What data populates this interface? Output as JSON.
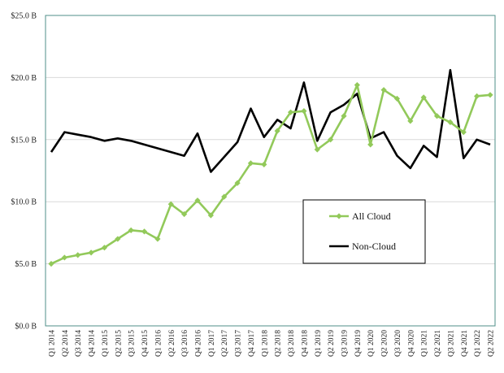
{
  "chart_data": {
    "type": "line",
    "title": "",
    "xlabel": "",
    "ylabel": "",
    "ylim": [
      0,
      25
    ],
    "y_ticks": [
      "$0.0 B",
      "$5.0 B",
      "$10.0 B",
      "$15.0 B",
      "$20.0 B",
      "$25.0 B"
    ],
    "grid": "horizontal",
    "legend_position": "center-right",
    "categories": [
      "Q1 2014",
      "Q2 2014",
      "Q3 2014",
      "Q4 2014",
      "Q1 2015",
      "Q2 2015",
      "Q3 2015",
      "Q4 2015",
      "Q1 2016",
      "Q2 2016",
      "Q3 2016",
      "Q4 2016",
      "Q1 2017",
      "Q2 2017",
      "Q3 2017",
      "Q4 2017",
      "Q1 2018",
      "Q2 2018",
      "Q3 2018",
      "Q4 2018",
      "Q1 2019",
      "Q2 2019",
      "Q3 2019",
      "Q4 2019",
      "Q1 2020",
      "Q2 2020",
      "Q3 2020",
      "Q4 2020",
      "Q1 2021",
      "Q2 2021",
      "Q3 2021",
      "Q4 2021",
      "Q1 2022",
      "Q2 2022"
    ],
    "series": [
      {
        "name": "All Cloud",
        "color": "#92c95a",
        "marker": "diamond",
        "values": [
          5.0,
          5.5,
          5.7,
          5.9,
          6.3,
          7.0,
          7.7,
          7.6,
          7.0,
          9.8,
          9.0,
          10.1,
          8.9,
          10.4,
          11.5,
          13.1,
          13.0,
          15.7,
          17.2,
          17.3,
          14.2,
          15.0,
          16.9,
          19.4,
          14.6,
          19.0,
          18.3,
          16.5,
          18.4,
          16.9,
          16.4,
          15.6,
          18.5,
          18.6
        ]
      },
      {
        "name": "Non-Cloud",
        "color": "#000000",
        "marker": "none",
        "values": [
          14.0,
          15.6,
          15.4,
          15.2,
          14.9,
          15.1,
          14.9,
          14.6,
          14.3,
          14.0,
          13.7,
          15.5,
          12.4,
          13.6,
          14.8,
          17.5,
          15.2,
          16.6,
          15.9,
          19.6,
          14.9,
          17.2,
          17.8,
          18.7,
          15.1,
          15.6,
          13.7,
          12.7,
          14.5,
          13.6,
          20.6,
          13.5,
          15.0,
          14.6
        ]
      }
    ]
  }
}
